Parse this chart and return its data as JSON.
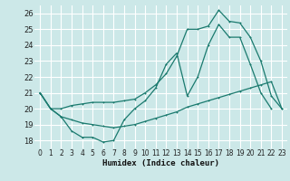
{
  "xlabel": "Humidex (Indice chaleur)",
  "bg_color": "#cce8e8",
  "grid_color": "#ffffff",
  "line_color": "#1a7a6e",
  "xlim": [
    -0.5,
    23.5
  ],
  "ylim": [
    17.5,
    26.5
  ],
  "xticks": [
    0,
    1,
    2,
    3,
    4,
    5,
    6,
    7,
    8,
    9,
    10,
    11,
    12,
    13,
    14,
    15,
    16,
    17,
    18,
    19,
    20,
    21,
    22,
    23
  ],
  "yticks": [
    18,
    19,
    20,
    21,
    22,
    23,
    24,
    25,
    26
  ],
  "line1_y": [
    21.0,
    20.0,
    19.5,
    18.6,
    18.2,
    18.2,
    17.9,
    18.0,
    19.3,
    20.0,
    20.5,
    21.3,
    22.8,
    23.5,
    20.8,
    22.0,
    24.0,
    25.3,
    24.5,
    24.5,
    22.8,
    21.0,
    20.0,
    null
  ],
  "line2_y": [
    21.0,
    20.0,
    20.0,
    20.2,
    20.3,
    20.4,
    20.4,
    20.4,
    20.5,
    20.6,
    21.0,
    21.5,
    22.2,
    23.3,
    25.0,
    25.0,
    25.2,
    26.2,
    25.5,
    25.4,
    24.5,
    23.0,
    20.8,
    20.0
  ],
  "line3_y": [
    21.0,
    20.0,
    19.5,
    19.3,
    19.1,
    19.0,
    18.9,
    18.8,
    18.9,
    19.0,
    19.2,
    19.4,
    19.6,
    19.8,
    20.1,
    20.3,
    20.5,
    20.7,
    20.9,
    21.1,
    21.3,
    21.5,
    21.7,
    20.0
  ]
}
